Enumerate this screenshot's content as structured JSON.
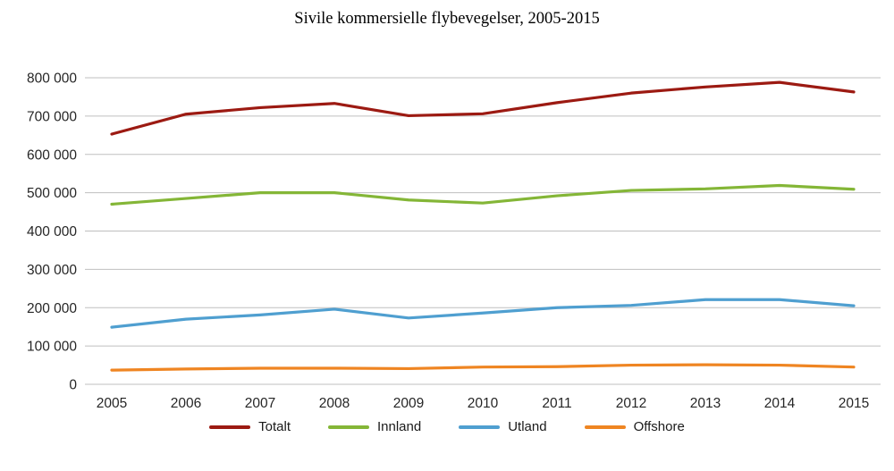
{
  "chart_data": {
    "type": "line",
    "title": "Sivile kommersielle flybevegelser, 2005-2015",
    "xlabel": "",
    "ylabel": "",
    "x": [
      2005,
      2006,
      2007,
      2008,
      2009,
      2010,
      2011,
      2012,
      2013,
      2014,
      2015
    ],
    "x_labels": [
      "2005",
      "2006",
      "2007",
      "2008",
      "2009",
      "2010",
      "2011",
      "2012",
      "2013",
      "2014",
      "2015"
    ],
    "ylim": [
      0,
      800000
    ],
    "ytick_step": 100000,
    "ytick_labels": [
      "0",
      "100 000",
      "200 000",
      "300 000",
      "400 000",
      "500 000",
      "600 000",
      "700 000",
      "800 000"
    ],
    "grid": true,
    "gridline_color": "#bfbfbf",
    "axis_text_color": "#262626",
    "legend_position": "bottom",
    "series": [
      {
        "name": "Totalt",
        "color": "#9c1a12",
        "values": [
          653000,
          705000,
          722000,
          733000,
          701000,
          706000,
          735000,
          760000,
          776000,
          788000,
          763000
        ]
      },
      {
        "name": "Innland",
        "color": "#84b637",
        "values": [
          470000,
          485000,
          500000,
          500000,
          481000,
          473000,
          492000,
          506000,
          510000,
          519000,
          509000
        ]
      },
      {
        "name": "Utland",
        "color": "#4f9fd0",
        "values": [
          149000,
          170000,
          181000,
          196000,
          173000,
          186000,
          200000,
          206000,
          221000,
          221000,
          205000
        ]
      },
      {
        "name": "Offshore",
        "color": "#ef8522",
        "values": [
          37000,
          40000,
          42000,
          42000,
          41000,
          45000,
          46000,
          50000,
          51000,
          50000,
          45000
        ]
      }
    ]
  }
}
